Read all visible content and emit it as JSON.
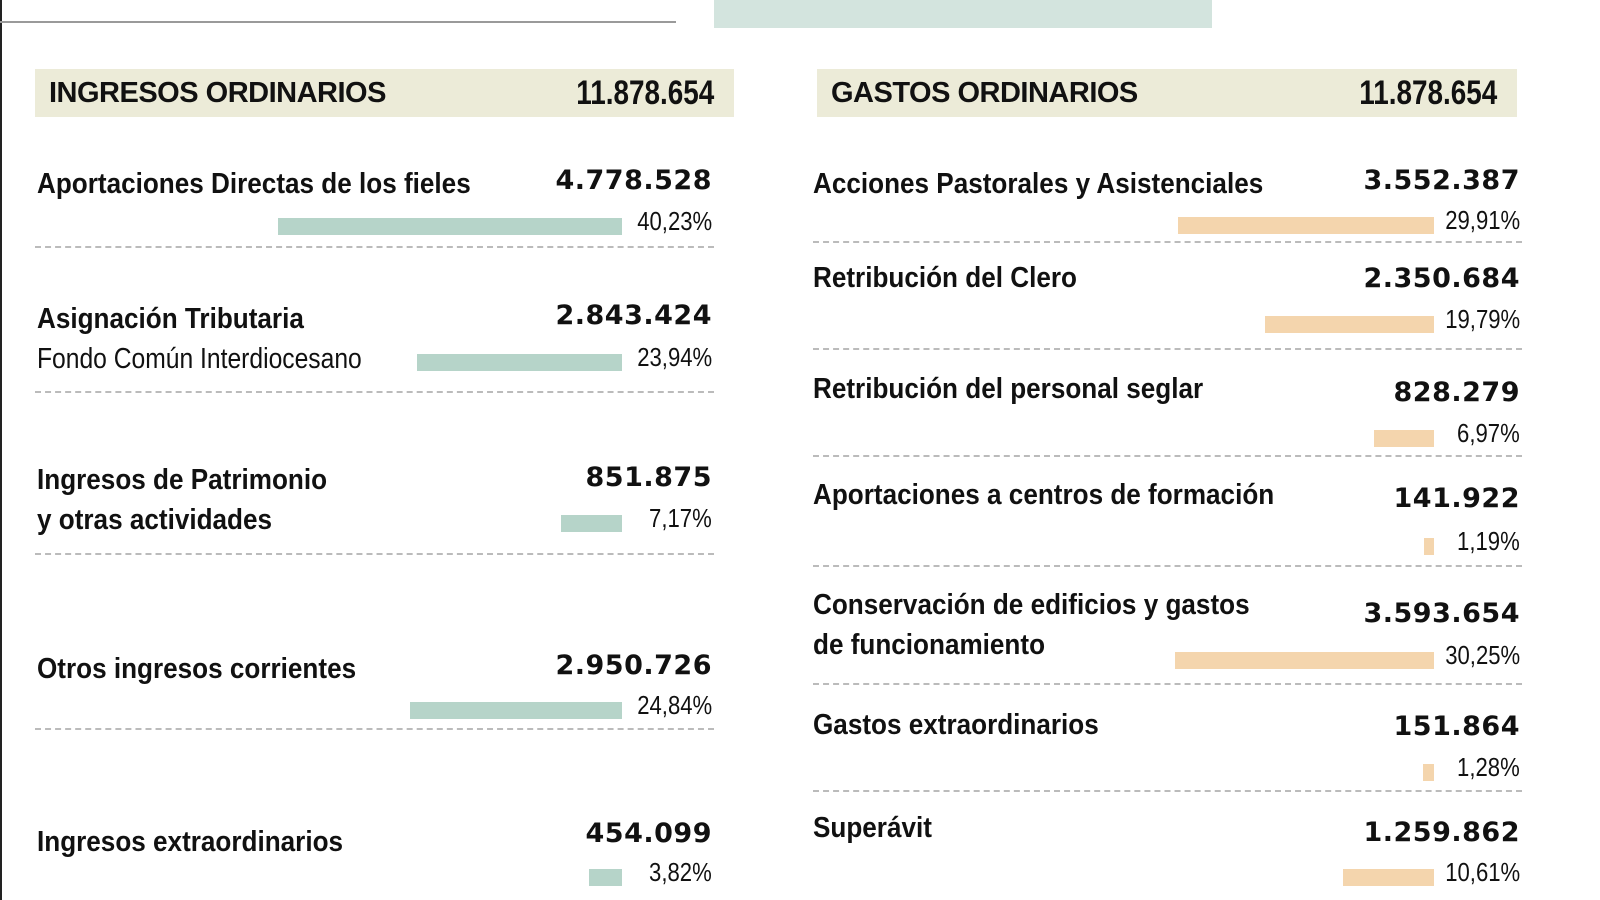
{
  "colors": {
    "income_bar": "#b6d4c9",
    "expense_bar": "#f4d5ad",
    "header_bg": "#ecebd8"
  },
  "chart_data": [
    {
      "type": "bar",
      "title": "INGRESOS ORDINARIOS",
      "total": "11.878.654",
      "items": [
        {
          "label": "Aportaciones Directas de los fieles",
          "value": "4.778.528",
          "percent_label": "40,23%",
          "percent": 40.23
        },
        {
          "label": "Asignación Tributaria",
          "sublabel": "Fondo Común Interdiocesano",
          "value": "2.843.424",
          "percent_label": "23,94%",
          "percent": 23.94
        },
        {
          "label": "Ingresos de Patrimonio",
          "sublabel": "y otras actividades",
          "value": "851.875",
          "percent_label": "7,17%",
          "percent": 7.17
        },
        {
          "label": "Otros ingresos corrientes",
          "value": "2.950.726",
          "percent_label": "24,84%",
          "percent": 24.84
        },
        {
          "label": "Ingresos extraordinarios",
          "value": "454.099",
          "percent_label": "3,82%",
          "percent": 3.82
        }
      ]
    },
    {
      "type": "bar",
      "title": "GASTOS ORDINARIOS",
      "total": "11.878.654",
      "items": [
        {
          "label": "Acciones Pastorales y Asistenciales",
          "value": "3.552.387",
          "percent_label": "29,91%",
          "percent": 29.91
        },
        {
          "label": "Retribución del Clero",
          "value": "2.350.684",
          "percent_label": "19,79%",
          "percent": 19.79
        },
        {
          "label": "Retribución del personal seglar",
          "value": "828.279",
          "percent_label": "6,97%",
          "percent": 6.97
        },
        {
          "label": "Aportaciones a centros de formación",
          "value": "141.922",
          "percent_label": "1,19%",
          "percent": 1.19
        },
        {
          "label": "Conservación de edificios y gastos",
          "sublabel": "de funcionamiento",
          "value": "3.593.654",
          "percent_label": "30,25%",
          "percent": 30.25
        },
        {
          "label": "Gastos extraordinarios",
          "value": "151.864",
          "percent_label": "1,28%",
          "percent": 1.28
        },
        {
          "label": "Superávit",
          "value": "1.259.862",
          "percent_label": "10,61%",
          "percent": 10.61
        }
      ]
    }
  ]
}
